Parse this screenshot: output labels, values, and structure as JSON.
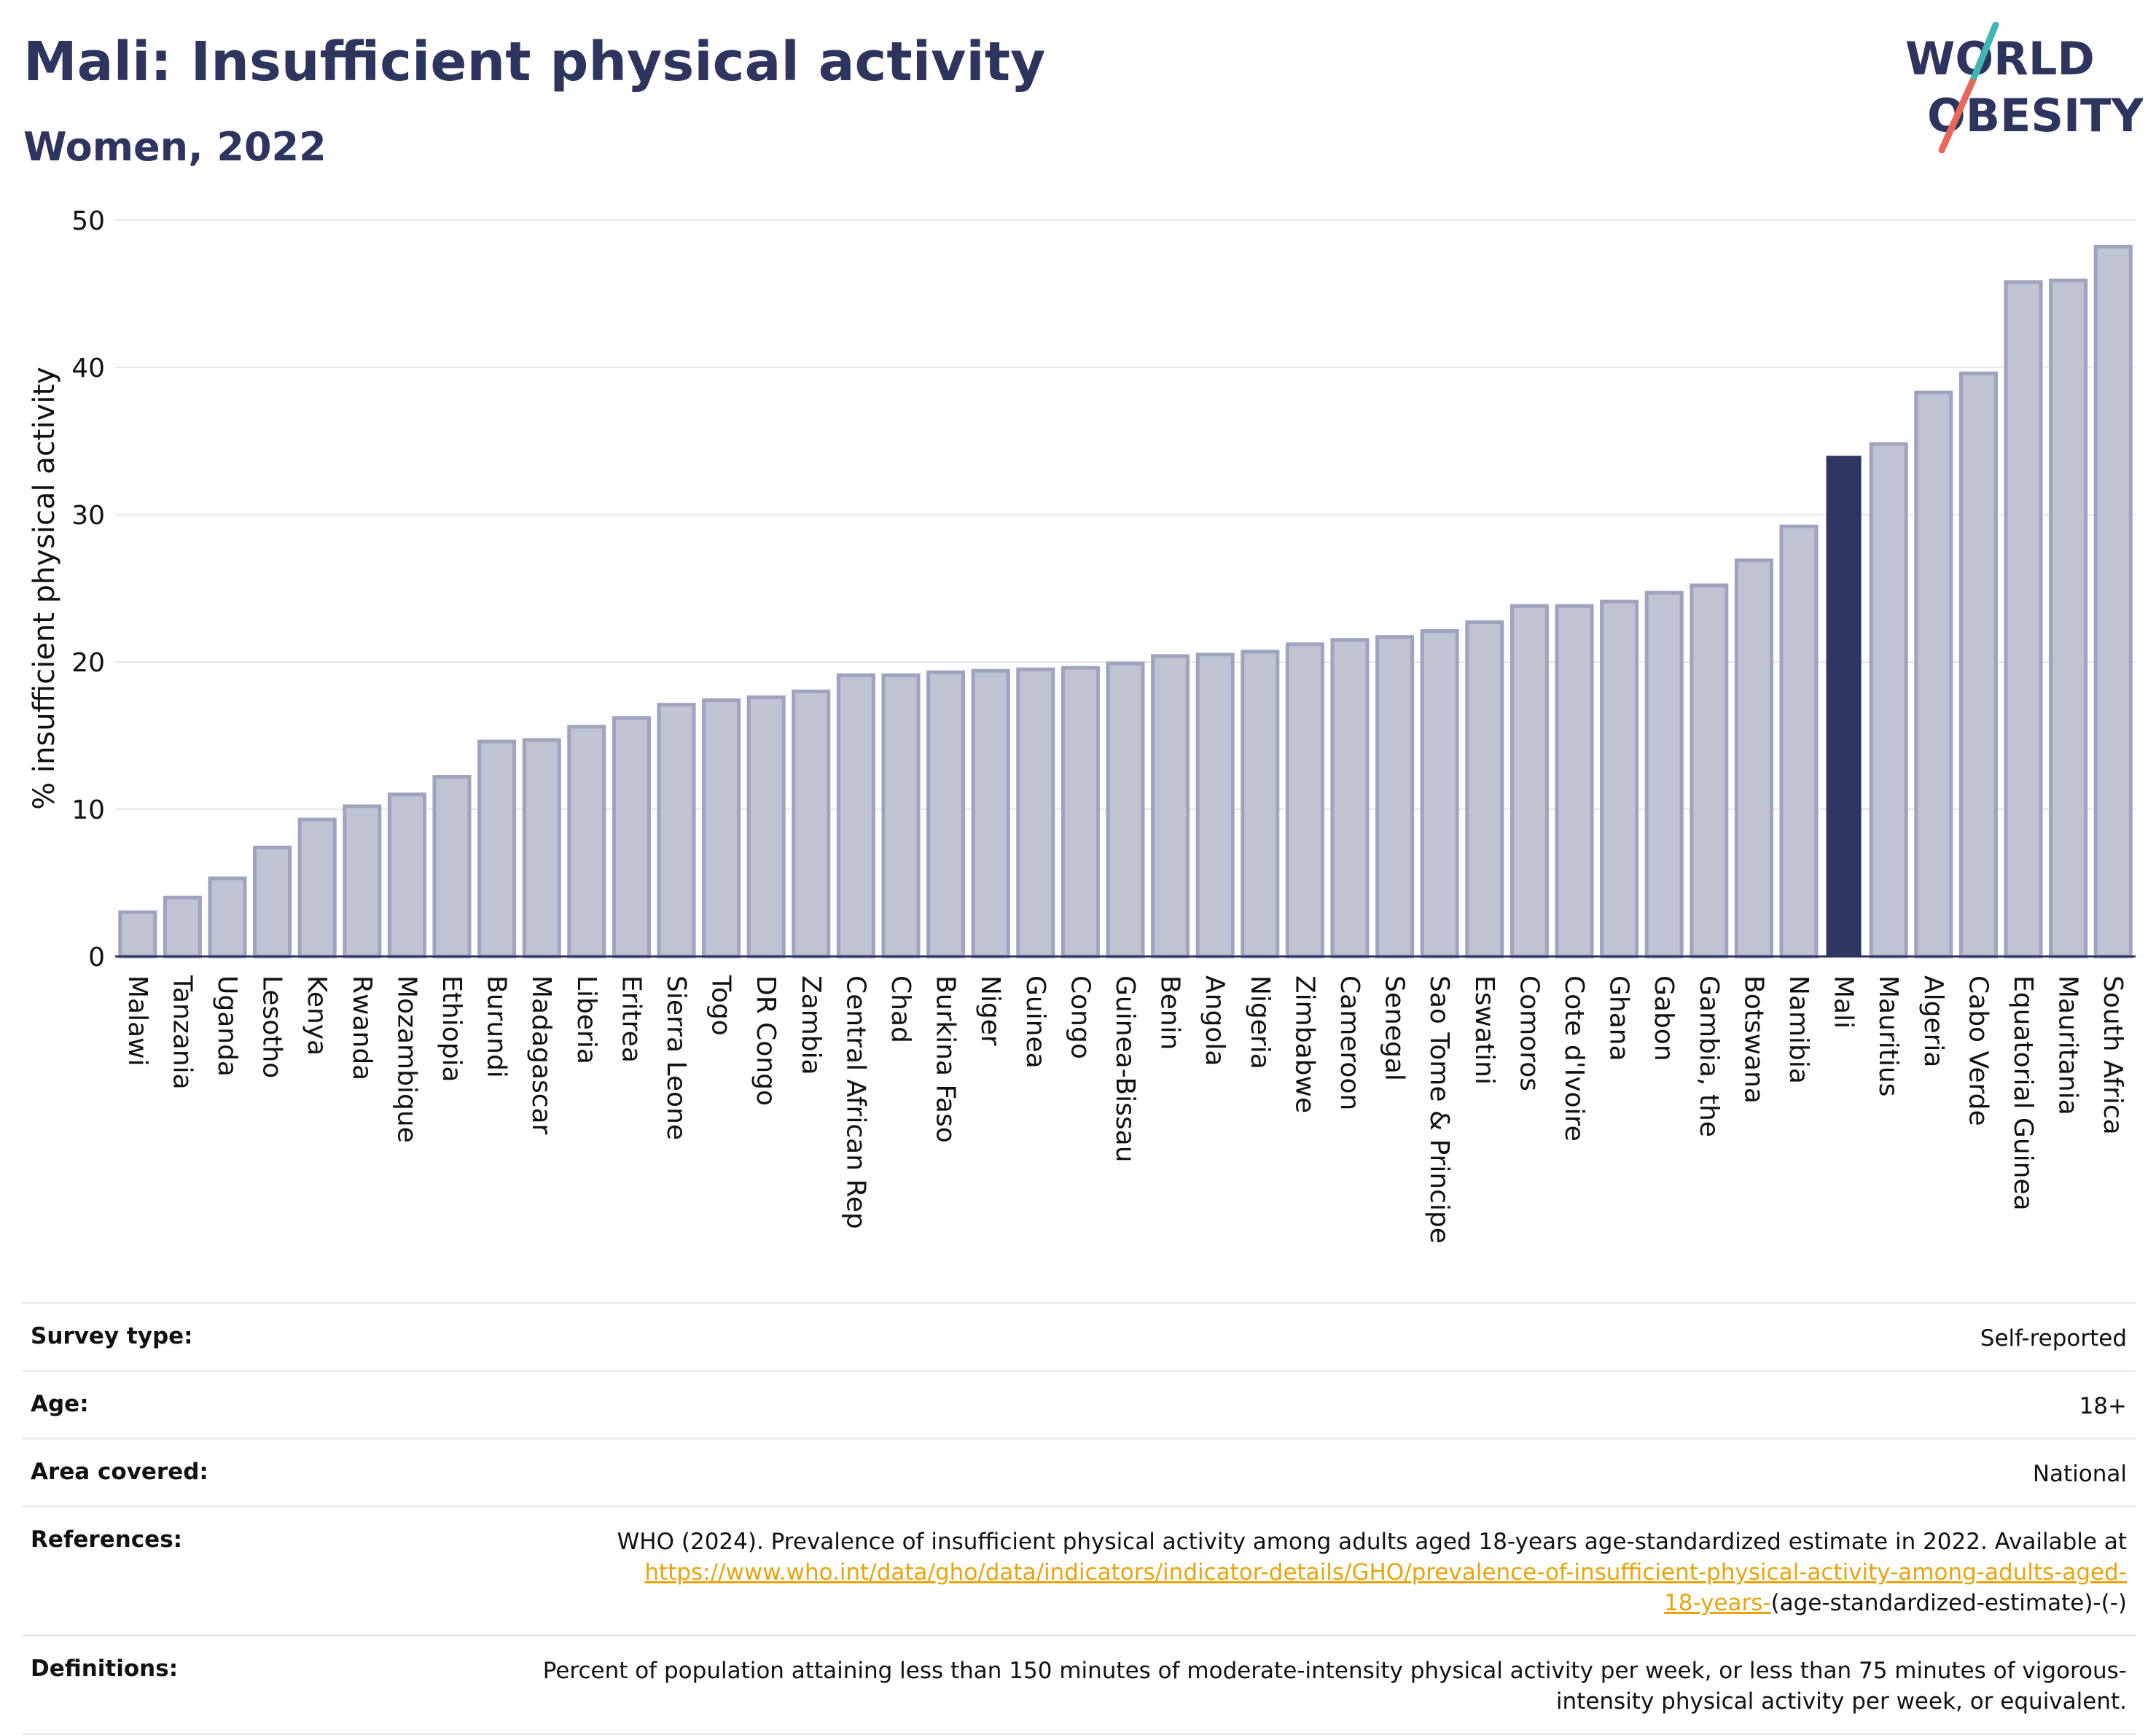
{
  "header": {
    "title": "Mali: Insufficient physical activity",
    "subtitle": "Women, 2022",
    "logo_line1": "WORLD",
    "logo_line2": "OBESITY"
  },
  "colors": {
    "bar": "#bfc3d2",
    "bar_border": "#9ea3bf",
    "highlight": "#2d3761",
    "title": "#2d355f",
    "link": "#e8a40c",
    "logo_slash": "#e8675a",
    "logo_teal": "#3fb6b2"
  },
  "chart_data": {
    "type": "bar",
    "title": "Mali: Insufficient physical activity",
    "subtitle": "Women, 2022",
    "ylabel": "% insufficient physical activity",
    "xlabel": "",
    "ylim": [
      0,
      50
    ],
    "yticks": [
      0,
      10,
      20,
      30,
      40,
      50
    ],
    "grid": true,
    "highlight": "Mali",
    "categories": [
      "Malawi",
      "Tanzania",
      "Uganda",
      "Lesotho",
      "Kenya",
      "Rwanda",
      "Mozambique",
      "Ethiopia",
      "Burundi",
      "Madagascar",
      "Liberia",
      "Eritrea",
      "Sierra Leone",
      "Togo",
      "DR Congo",
      "Zambia",
      "Central African Rep",
      "Chad",
      "Burkina Faso",
      "Niger",
      "Guinea",
      "Congo",
      "Guinea-Bissau",
      "Benin",
      "Angola",
      "Nigeria",
      "Zimbabwe",
      "Cameroon",
      "Senegal",
      "Sao Tome & Principe",
      "Eswatini",
      "Comoros",
      "Cote d'Ivoire",
      "Ghana",
      "Gabon",
      "Gambia, the",
      "Botswana",
      "Namibia",
      "Mali",
      "Mauritius",
      "Algeria",
      "Cabo Verde",
      "Equatorial Guinea",
      "Mauritania",
      "South Africa"
    ],
    "values": [
      3.0,
      4.0,
      5.3,
      7.4,
      9.3,
      10.2,
      11.0,
      12.2,
      14.6,
      14.7,
      15.6,
      16.2,
      17.1,
      17.4,
      17.6,
      18.0,
      19.1,
      19.1,
      19.3,
      19.4,
      19.5,
      19.6,
      19.9,
      20.4,
      20.5,
      20.7,
      21.2,
      21.5,
      21.7,
      22.1,
      22.7,
      23.8,
      23.8,
      24.1,
      24.7,
      25.2,
      26.9,
      29.2,
      34.0,
      34.8,
      38.3,
      39.6,
      45.8,
      45.9,
      48.2
    ]
  },
  "info": {
    "survey_type_label": "Survey type:",
    "survey_type_value": "Self-reported",
    "age_label": "Age:",
    "age_value": "18+",
    "area_label": "Area covered:",
    "area_value": "National",
    "references_label": "References:",
    "references_text": "WHO (2024). Prevalence of insufficient physical activity among adults aged 18-years age-standardized estimate in 2022. Available at",
    "references_link_1": "https://www.who.int/data/gho/data/indicators/indicator-details/GHO/prevalence-of-insufficient-physical-activity-among-adults-aged-",
    "references_link_2": "18-years-",
    "references_tail": "(age-standardized-estimate)-(-)",
    "definitions_label": "Definitions:",
    "definitions_value": "Percent of population attaining less than 150 minutes of moderate-intensity physical activity per week, or less than 75 minutes of vigorous-intensity physical activity per week, or equivalent."
  }
}
